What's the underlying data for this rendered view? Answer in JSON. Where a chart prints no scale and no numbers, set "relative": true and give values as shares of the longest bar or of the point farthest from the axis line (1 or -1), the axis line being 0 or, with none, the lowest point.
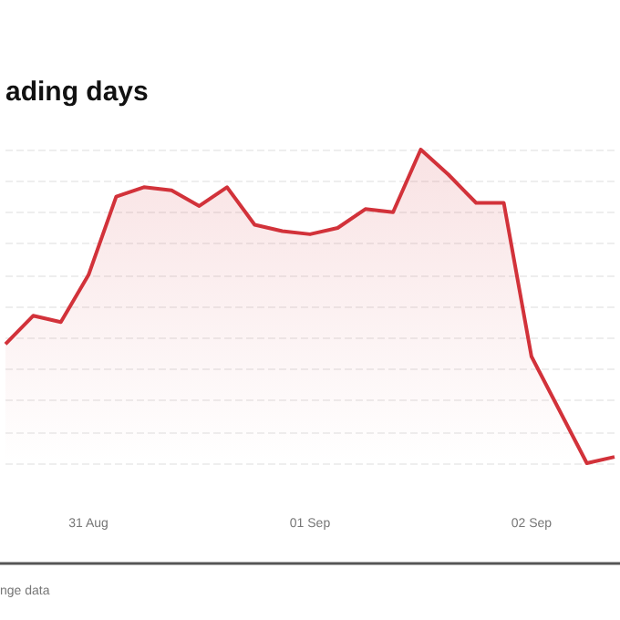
{
  "chart_data": {
    "type": "area",
    "title": "ading days",
    "annotations": [
      "nge data"
    ],
    "relative": true,
    "grid": "y",
    "marker": "none",
    "line_style": "solid",
    "categories": [
      null,
      null,
      null,
      "31 Aug",
      null,
      null,
      null,
      null,
      null,
      null,
      null,
      "01 Sep",
      null,
      null,
      null,
      null,
      null,
      null,
      null,
      "02 Sep",
      null,
      null,
      null
    ],
    "series": [
      {
        "color": "#d2323a",
        "values": [
          0.38,
          0.47,
          0.45,
          0.6,
          0.85,
          0.88,
          0.87,
          0.82,
          0.88,
          0.76,
          0.74,
          0.73,
          0.75,
          0.81,
          0.8,
          1,
          0.92,
          0.83,
          0.83,
          0.34,
          0.17,
          0,
          0.02
        ]
      }
    ]
  }
}
